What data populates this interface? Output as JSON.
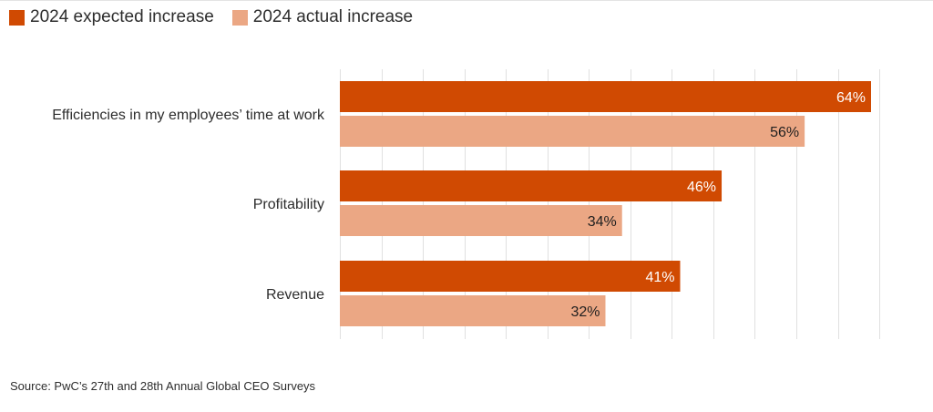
{
  "legend": {
    "expected_label": "2024 expected increase",
    "actual_label": "2024 actual increase"
  },
  "colors": {
    "expected": "#d04a02",
    "actual": "#eba784",
    "grid": "#e0e0e0",
    "text": "#2d2d2d",
    "label_on_dark": "#ffffff",
    "label_on_light": "#1f1f1f"
  },
  "chart_data": {
    "type": "bar",
    "orientation": "horizontal",
    "categories": [
      "Efficiencies in my employees’ time at work",
      "Profitability",
      "Revenue"
    ],
    "series": [
      {
        "name": "2024 expected increase",
        "values": [
          64,
          46,
          41
        ],
        "labels": [
          "64%",
          "46%",
          "41%"
        ]
      },
      {
        "name": "2024 actual increase",
        "values": [
          56,
          34,
          32
        ],
        "labels": [
          "56%",
          "34%",
          "32%"
        ]
      }
    ],
    "xlim": [
      0,
      65
    ],
    "grid": true,
    "legend_position": "top-left"
  },
  "source": "Source: PwC’s 27th and 28th Annual Global CEO Surveys"
}
